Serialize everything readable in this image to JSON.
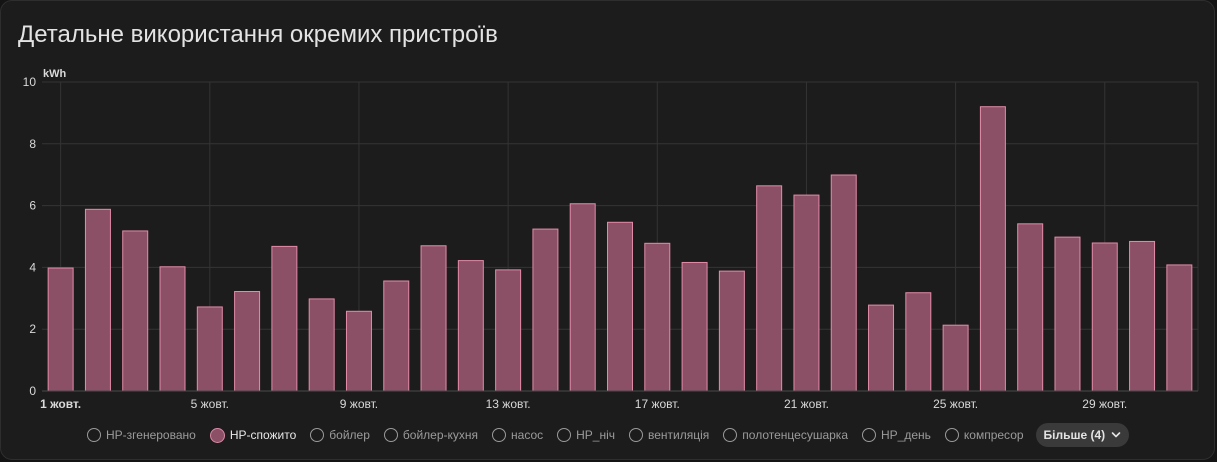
{
  "card": {
    "title": "Детальне використання окремих пристроїв"
  },
  "chart_data": {
    "type": "bar",
    "title": "",
    "xlabel": "",
    "ylabel": "kWh",
    "ylim": [
      0,
      10
    ],
    "yticks": [
      "0",
      "2",
      "4",
      "6",
      "8",
      "10"
    ],
    "grid": true,
    "categories": [
      "1",
      "2",
      "3",
      "4",
      "5",
      "6",
      "7",
      "8",
      "9",
      "10",
      "11",
      "12",
      "13",
      "14",
      "15",
      "16",
      "17",
      "18",
      "19",
      "20",
      "21",
      "22",
      "23",
      "24",
      "25",
      "26",
      "27",
      "28",
      "29",
      "30",
      "31"
    ],
    "xtick_labels": [
      {
        "index": 0,
        "label": "1 жовт.",
        "bold": true
      },
      {
        "index": 4,
        "label": "5 жовт.",
        "bold": false
      },
      {
        "index": 8,
        "label": "9 жовт.",
        "bold": false
      },
      {
        "index": 12,
        "label": "13 жовт.",
        "bold": false
      },
      {
        "index": 16,
        "label": "17 жовт.",
        "bold": false
      },
      {
        "index": 20,
        "label": "21 жовт.",
        "bold": false
      },
      {
        "index": 24,
        "label": "25 жовт.",
        "bold": false
      },
      {
        "index": 28,
        "label": "29 жовт.",
        "bold": false
      }
    ],
    "series": [
      {
        "name": "HP-спожито",
        "values": [
          3.98,
          5.88,
          5.18,
          4.02,
          2.72,
          3.22,
          4.68,
          2.98,
          2.58,
          3.56,
          4.7,
          4.22,
          3.92,
          5.24,
          6.06,
          5.46,
          4.78,
          4.16,
          3.88,
          6.64,
          6.34,
          6.99,
          2.78,
          3.18,
          2.13,
          9.2,
          5.41,
          4.98,
          4.79,
          4.84,
          4.08
        ]
      }
    ],
    "colors": {
      "bar_fill": "#8b4f66",
      "bar_stroke": "#e38ca9",
      "grid": "#343434",
      "axis_text": "#d9d9d9"
    }
  },
  "legend": {
    "items": [
      {
        "label": "HP-згенеровано",
        "active": false
      },
      {
        "label": "HP-спожито",
        "active": true
      },
      {
        "label": "бойлер",
        "active": false
      },
      {
        "label": "бойлер-кухня",
        "active": false
      },
      {
        "label": "насос",
        "active": false
      },
      {
        "label": "HP_ніч",
        "active": false
      },
      {
        "label": "вентиляція",
        "active": false
      },
      {
        "label": "полотенцесушарка",
        "active": false
      },
      {
        "label": "HP_день",
        "active": false
      },
      {
        "label": "компресор",
        "active": false
      }
    ],
    "more_label": "Більше (4)",
    "more_icon": "chevron-down-icon"
  }
}
